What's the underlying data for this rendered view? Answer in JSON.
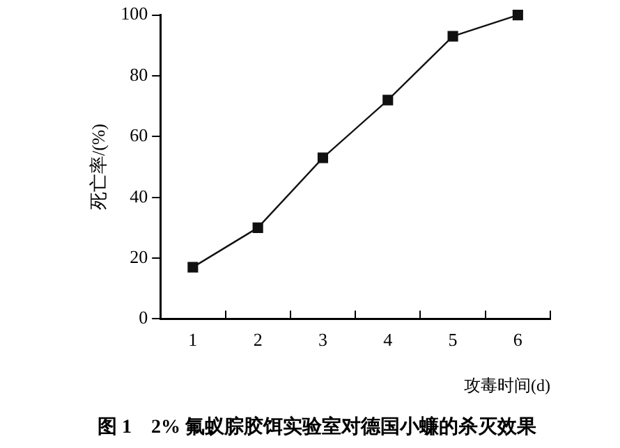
{
  "chart_data": {
    "type": "line",
    "title": "图 1　2% 氟蚁腙胶饵实验室对德国小蠊的杀灭效果",
    "xlabel": "攻毒时间(d)",
    "ylabel": "死亡率/(%)",
    "categories": [
      "1",
      "2",
      "3",
      "4",
      "5",
      "6"
    ],
    "series": [
      {
        "color": "#111111",
        "values": [
          17,
          30,
          53,
          72,
          93,
          100
        ]
      }
    ],
    "ylim": [
      0,
      100
    ],
    "yticks": [
      0,
      20,
      40,
      60,
      80,
      100
    ],
    "grid": false,
    "legend": false,
    "marker": "square",
    "line_style": "solid"
  }
}
